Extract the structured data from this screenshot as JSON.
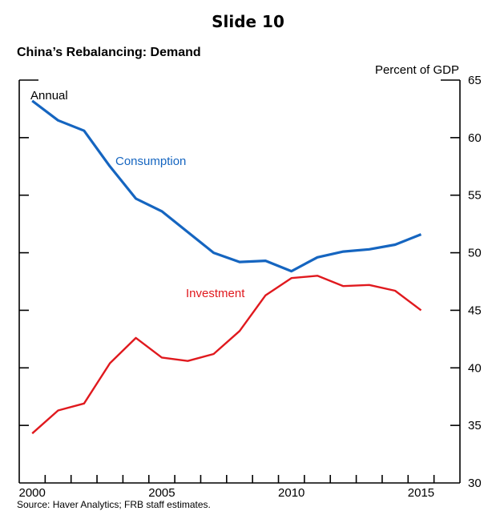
{
  "slide_title": "Slide 10",
  "chart_data": {
    "type": "line",
    "title": "China’s Rebalancing: Demand",
    "subtitle": "Annual",
    "ylabel": "Percent of GDP",
    "xlabel": "",
    "x": [
      2000,
      2001,
      2002,
      2003,
      2004,
      2005,
      2006,
      2007,
      2008,
      2009,
      2010,
      2011,
      2012,
      2013,
      2014,
      2015
    ],
    "xlim": [
      1999.5,
      2016.5
    ],
    "ylim": [
      30,
      65
    ],
    "x_ticks": [
      2000,
      2005,
      2010,
      2015
    ],
    "y_ticks": [
      30,
      35,
      40,
      45,
      50,
      55,
      60,
      65
    ],
    "y_axis_side": "right",
    "grid": false,
    "series": [
      {
        "name": "Consumption",
        "color": "#1565C0",
        "values": [
          63.2,
          61.5,
          60.6,
          57.5,
          54.7,
          53.6,
          51.8,
          50.0,
          49.2,
          49.3,
          48.4,
          49.6,
          50.1,
          50.3,
          50.7,
          51.6
        ],
        "label_position": "upper-left"
      },
      {
        "name": "Investment",
        "color": "#E0191E",
        "values": [
          34.3,
          36.3,
          36.9,
          40.4,
          42.6,
          40.9,
          40.6,
          41.2,
          43.2,
          46.3,
          47.8,
          48.0,
          47.1,
          47.2,
          46.7,
          45.0
        ],
        "label_position": "center"
      }
    ],
    "source": "Source: Haver Analytics; FRB staff estimates."
  }
}
